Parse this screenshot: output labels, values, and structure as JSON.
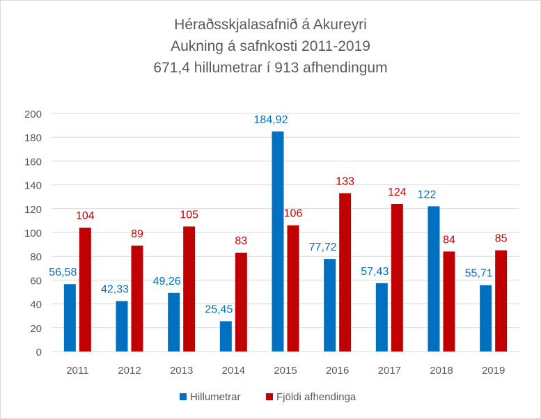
{
  "chart_data": {
    "type": "bar",
    "title": [
      "Héraðsskjalasafnið á Akureyri",
      "Aukning á safnkosti 2011-2019",
      "671,4 hillumetrar í 913 afhendingum"
    ],
    "categories": [
      "2011",
      "2012",
      "2013",
      "2014",
      "2015",
      "2016",
      "2017",
      "2018",
      "2019"
    ],
    "ylim": [
      0,
      200
    ],
    "yticks": [
      "0",
      "20",
      "40",
      "60",
      "80",
      "100",
      "120",
      "140",
      "160",
      "180",
      "200"
    ],
    "grid": true,
    "legend_position": "bottom",
    "series": [
      {
        "name": "Hillumetrar",
        "color": "#0070c0",
        "values": [
          56.58,
          42.33,
          49.26,
          25.45,
          184.92,
          77.72,
          57.43,
          122,
          55.71
        ],
        "labels": [
          "56,58",
          "42,33",
          "49,26",
          "25,45",
          "184,92",
          "77,72",
          "57,43",
          "122",
          "55,71"
        ]
      },
      {
        "name": "Fjöldi afhendinga",
        "color": "#c00000",
        "values": [
          104,
          89,
          105,
          83,
          106,
          133,
          124,
          84,
          85
        ],
        "labels": [
          "104",
          "89",
          "105",
          "83",
          "106",
          "133",
          "124",
          "84",
          "85"
        ]
      }
    ]
  }
}
